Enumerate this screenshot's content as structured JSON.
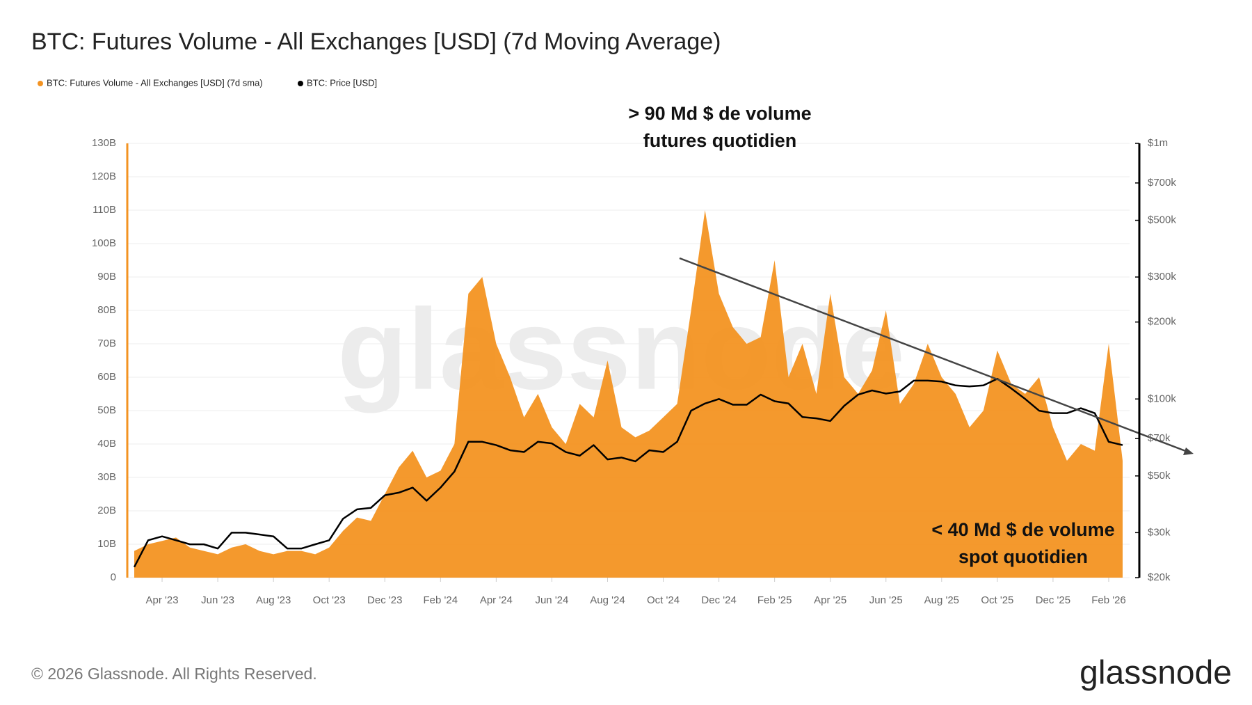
{
  "chart_data": {
    "type": "area",
    "title": "BTC: Futures Volume - All Exchanges [USD] (7d Moving Average)",
    "watermark": "glassnode",
    "footer": "© 2026 Glassnode. All Rights Reserved.",
    "logo": "glassnode",
    "annotations": [
      [
        "> 90 Md $ de volume",
        "futures quotidien"
      ],
      [
        "< 40 Md $ de volume",
        "spot quotidien"
      ]
    ],
    "categories": [
      null,
      null,
      "Apr '23",
      null,
      null,
      null,
      "Jun '23",
      null,
      null,
      null,
      "Aug '23",
      null,
      null,
      null,
      "Oct '23",
      null,
      null,
      null,
      "Dec '23",
      null,
      null,
      null,
      "Feb '24",
      null,
      null,
      null,
      "Apr '24",
      null,
      null,
      null,
      "Jun '24",
      null,
      null,
      null,
      "Aug '24",
      null,
      null,
      null,
      "Oct '24",
      null,
      null,
      null,
      "Dec '24",
      null,
      null,
      null,
      "Feb '25",
      null,
      null,
      null,
      "Apr '25",
      null,
      null,
      null,
      "Jun '25",
      null,
      null,
      null,
      "Aug '25",
      null,
      null,
      null,
      "Oct '25",
      null,
      null,
      null,
      "Dec '25",
      null,
      null,
      null,
      "Feb '26",
      null
    ],
    "series": [
      {
        "name": "BTC: Futures Volume - All Exchanges [USD] (7d sma)",
        "color": "#f39322",
        "type": "area",
        "values": [
          8,
          10,
          11,
          12,
          9,
          8,
          7,
          9,
          10,
          8,
          7,
          8,
          8,
          7,
          9,
          14,
          18,
          17,
          25,
          33,
          38,
          30,
          32,
          40,
          85,
          90,
          70,
          60,
          48,
          55,
          45,
          40,
          52,
          48,
          65,
          45,
          42,
          44,
          48,
          52,
          80,
          110,
          85,
          75,
          70,
          72,
          95,
          60,
          70,
          55,
          85,
          60,
          55,
          62,
          80,
          52,
          58,
          70,
          60,
          55,
          45,
          50,
          68,
          58,
          55,
          60,
          45,
          35,
          40,
          38,
          70,
          35
        ]
      },
      {
        "name": "BTC: Price [USD]",
        "color": "#000000",
        "type": "line",
        "axis": "y2",
        "values": [
          22000,
          28000,
          29000,
          28000,
          27000,
          27000,
          26000,
          30000,
          30000,
          29500,
          29000,
          26000,
          26000,
          27000,
          28000,
          34000,
          37000,
          37500,
          42000,
          43000,
          45000,
          40000,
          45000,
          52000,
          68000,
          68000,
          66000,
          63000,
          62000,
          68000,
          67000,
          62000,
          60000,
          66000,
          58000,
          59000,
          57000,
          63000,
          62000,
          68000,
          90000,
          96000,
          100000,
          95000,
          95000,
          104000,
          98000,
          96000,
          85000,
          84000,
          82000,
          94000,
          104000,
          108000,
          105000,
          107000,
          118000,
          118000,
          117000,
          113000,
          112000,
          113000,
          120000,
          110000,
          100000,
          90000,
          88000,
          88000,
          92000,
          88000,
          68000,
          66000
        ]
      }
    ],
    "ylim": [
      0,
      130
    ],
    "yticks": [
      0,
      {
        "value": 10,
        "label": "10B"
      },
      {
        "value": 20,
        "label": "20B"
      },
      {
        "value": 30,
        "label": "30B"
      },
      {
        "value": 40,
        "label": "40B"
      },
      {
        "value": 50,
        "label": "50B"
      },
      {
        "value": 60,
        "label": "60B"
      },
      {
        "value": 70,
        "label": "70B"
      },
      {
        "value": 80,
        "label": "80B"
      },
      {
        "value": 90,
        "label": "90B"
      },
      {
        "value": 100,
        "label": "100B"
      },
      {
        "value": 110,
        "label": "110B"
      },
      {
        "value": 120,
        "label": "120B"
      },
      {
        "value": 130,
        "label": "130B"
      }
    ],
    "y2lim": [
      20000,
      1000000
    ],
    "y2scale": "log",
    "y2ticks": [
      {
        "value": 20000,
        "label": "$20k"
      },
      {
        "value": 30000,
        "label": "$30k"
      },
      {
        "value": 50000,
        "label": "$50k"
      },
      {
        "value": 70000,
        "label": "$70k"
      },
      {
        "value": 100000,
        "label": "$100k"
      },
      {
        "value": 200000,
        "label": "$200k"
      },
      {
        "value": 300000,
        "label": "$300k"
      },
      {
        "value": 500000,
        "label": "$500k"
      },
      {
        "value": 700000,
        "label": "$700k"
      },
      {
        "value": 1000000,
        "label": "$1m"
      }
    ],
    "grid": true
  }
}
